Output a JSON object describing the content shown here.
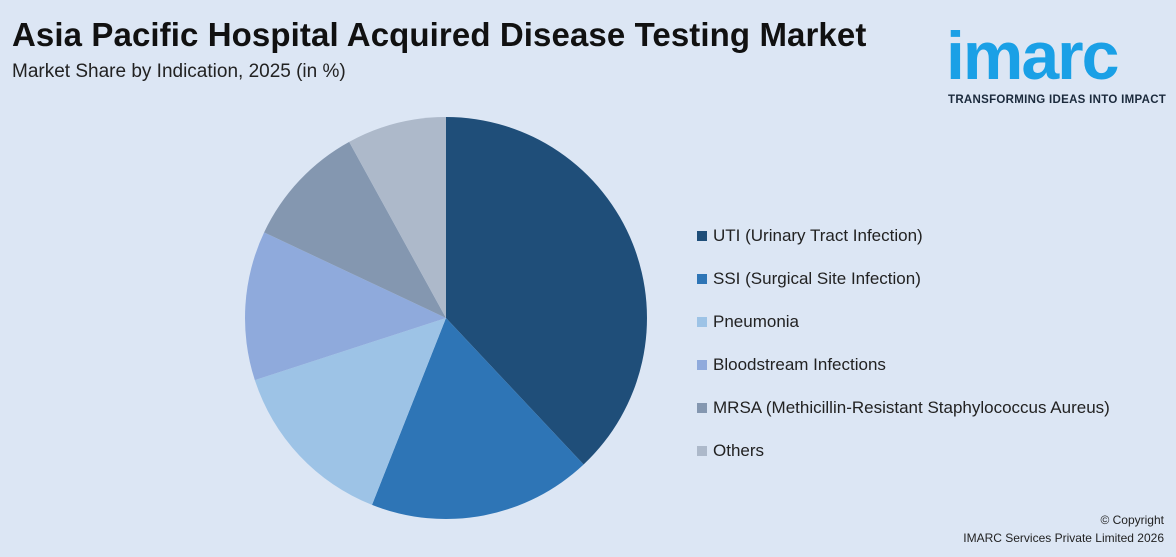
{
  "header": {
    "title": "Asia Pacific Hospital Acquired Disease Testing Market",
    "subtitle": "Market Share by Indication, 2025 (in %)"
  },
  "logo": {
    "word": "imarc",
    "tagline": "TRANSFORMING IDEAS INTO IMPACT",
    "color": "#1aa0e6"
  },
  "chart_data": {
    "type": "pie",
    "categories": [
      "UTI (Urinary Tract Infection)",
      "SSI (Surgical Site Infection)",
      "Pneumonia",
      "Bloodstream Infections",
      "MRSA (Methicillin-Resistant Staphylococcus Aureus)",
      "Others"
    ],
    "values": [
      38,
      18,
      14,
      12,
      10,
      8
    ],
    "colors": [
      "#1f4e79",
      "#2e75b6",
      "#9dc3e6",
      "#8faadc",
      "#8497b0",
      "#adb9ca"
    ],
    "start_angle_deg": 0,
    "direction": "clockwise",
    "legend_position": "right"
  },
  "footer": {
    "line1": "© Copyright",
    "line2": "IMARC Services Private Limited 2026"
  }
}
